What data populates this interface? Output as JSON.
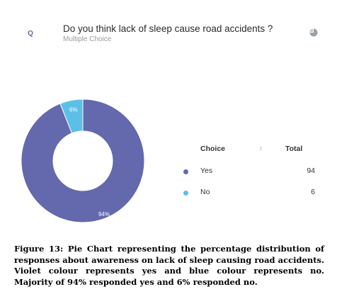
{
  "header": {
    "q_label": "Q",
    "question": "Do you think lack of sleep cause road accidents ?",
    "subtitle": "Multiple Choice"
  },
  "icons": {
    "chart_type": "pie-chart-icon",
    "sort": "sort-icon"
  },
  "chart_data": {
    "type": "pie",
    "style": "donut",
    "slices": [
      {
        "label": "Yes",
        "value": 94,
        "percent_label": "94%",
        "color": "#6468ad"
      },
      {
        "label": "No",
        "value": 6,
        "percent_label": "6%",
        "color": "#5cc0e6"
      }
    ]
  },
  "table": {
    "header_choice": "Choice",
    "header_total": "Total",
    "rows": [
      {
        "label": "Yes",
        "total": "94",
        "color": "#6468ad"
      },
      {
        "label": "No",
        "total": "6",
        "color": "#5cc0e6"
      }
    ]
  },
  "caption": "Figure 13: Pie Chart representing the percentage distribution of responses about awareness on lack of sleep causing road accidents. Violet colour represents yes and blue colour represents no. Majority of 94% responded yes and 6% responded no."
}
